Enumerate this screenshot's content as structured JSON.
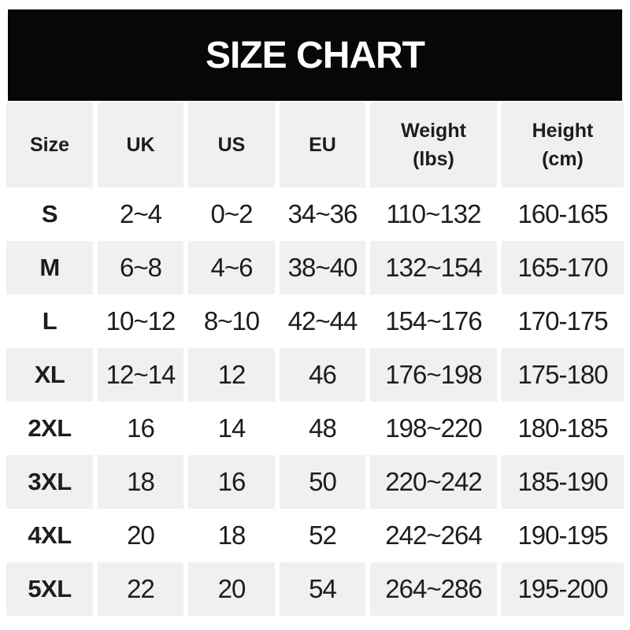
{
  "banner": {
    "title_label": "SIZE CHART"
  },
  "colors": {
    "banner_bg": "#070707",
    "banner_text": "#ffffff",
    "stripe_gray": "#f0f0f0",
    "row_white": "#ffffff",
    "text": "#1d1d1f"
  },
  "chart_data": {
    "type": "table",
    "title": "SIZE CHART",
    "columns": [
      "Size",
      "UK",
      "US",
      "EU",
      "Weight (lbs)",
      "Height (cm)"
    ],
    "rows": [
      [
        "S",
        "2~4",
        "0~2",
        "34~36",
        "110~132",
        "160-165"
      ],
      [
        "M",
        "6~8",
        "4~6",
        "38~40",
        "132~154",
        "165-170"
      ],
      [
        "L",
        "10~12",
        "8~10",
        "42~44",
        "154~176",
        "170-175"
      ],
      [
        "XL",
        "12~14",
        "12",
        "46",
        "176~198",
        "175-180"
      ],
      [
        "2XL",
        "16",
        "14",
        "48",
        "198~220",
        "180-185"
      ],
      [
        "3XL",
        "18",
        "16",
        "50",
        "220~242",
        "185-190"
      ],
      [
        "4XL",
        "20",
        "18",
        "52",
        "242~264",
        "190-195"
      ],
      [
        "5XL",
        "22",
        "20",
        "54",
        "264~286",
        "195-200"
      ]
    ],
    "layout_hints": {
      "striped_rows": true,
      "header_band": "gray",
      "weight_unit": "lbs",
      "height_unit": "cm"
    }
  }
}
